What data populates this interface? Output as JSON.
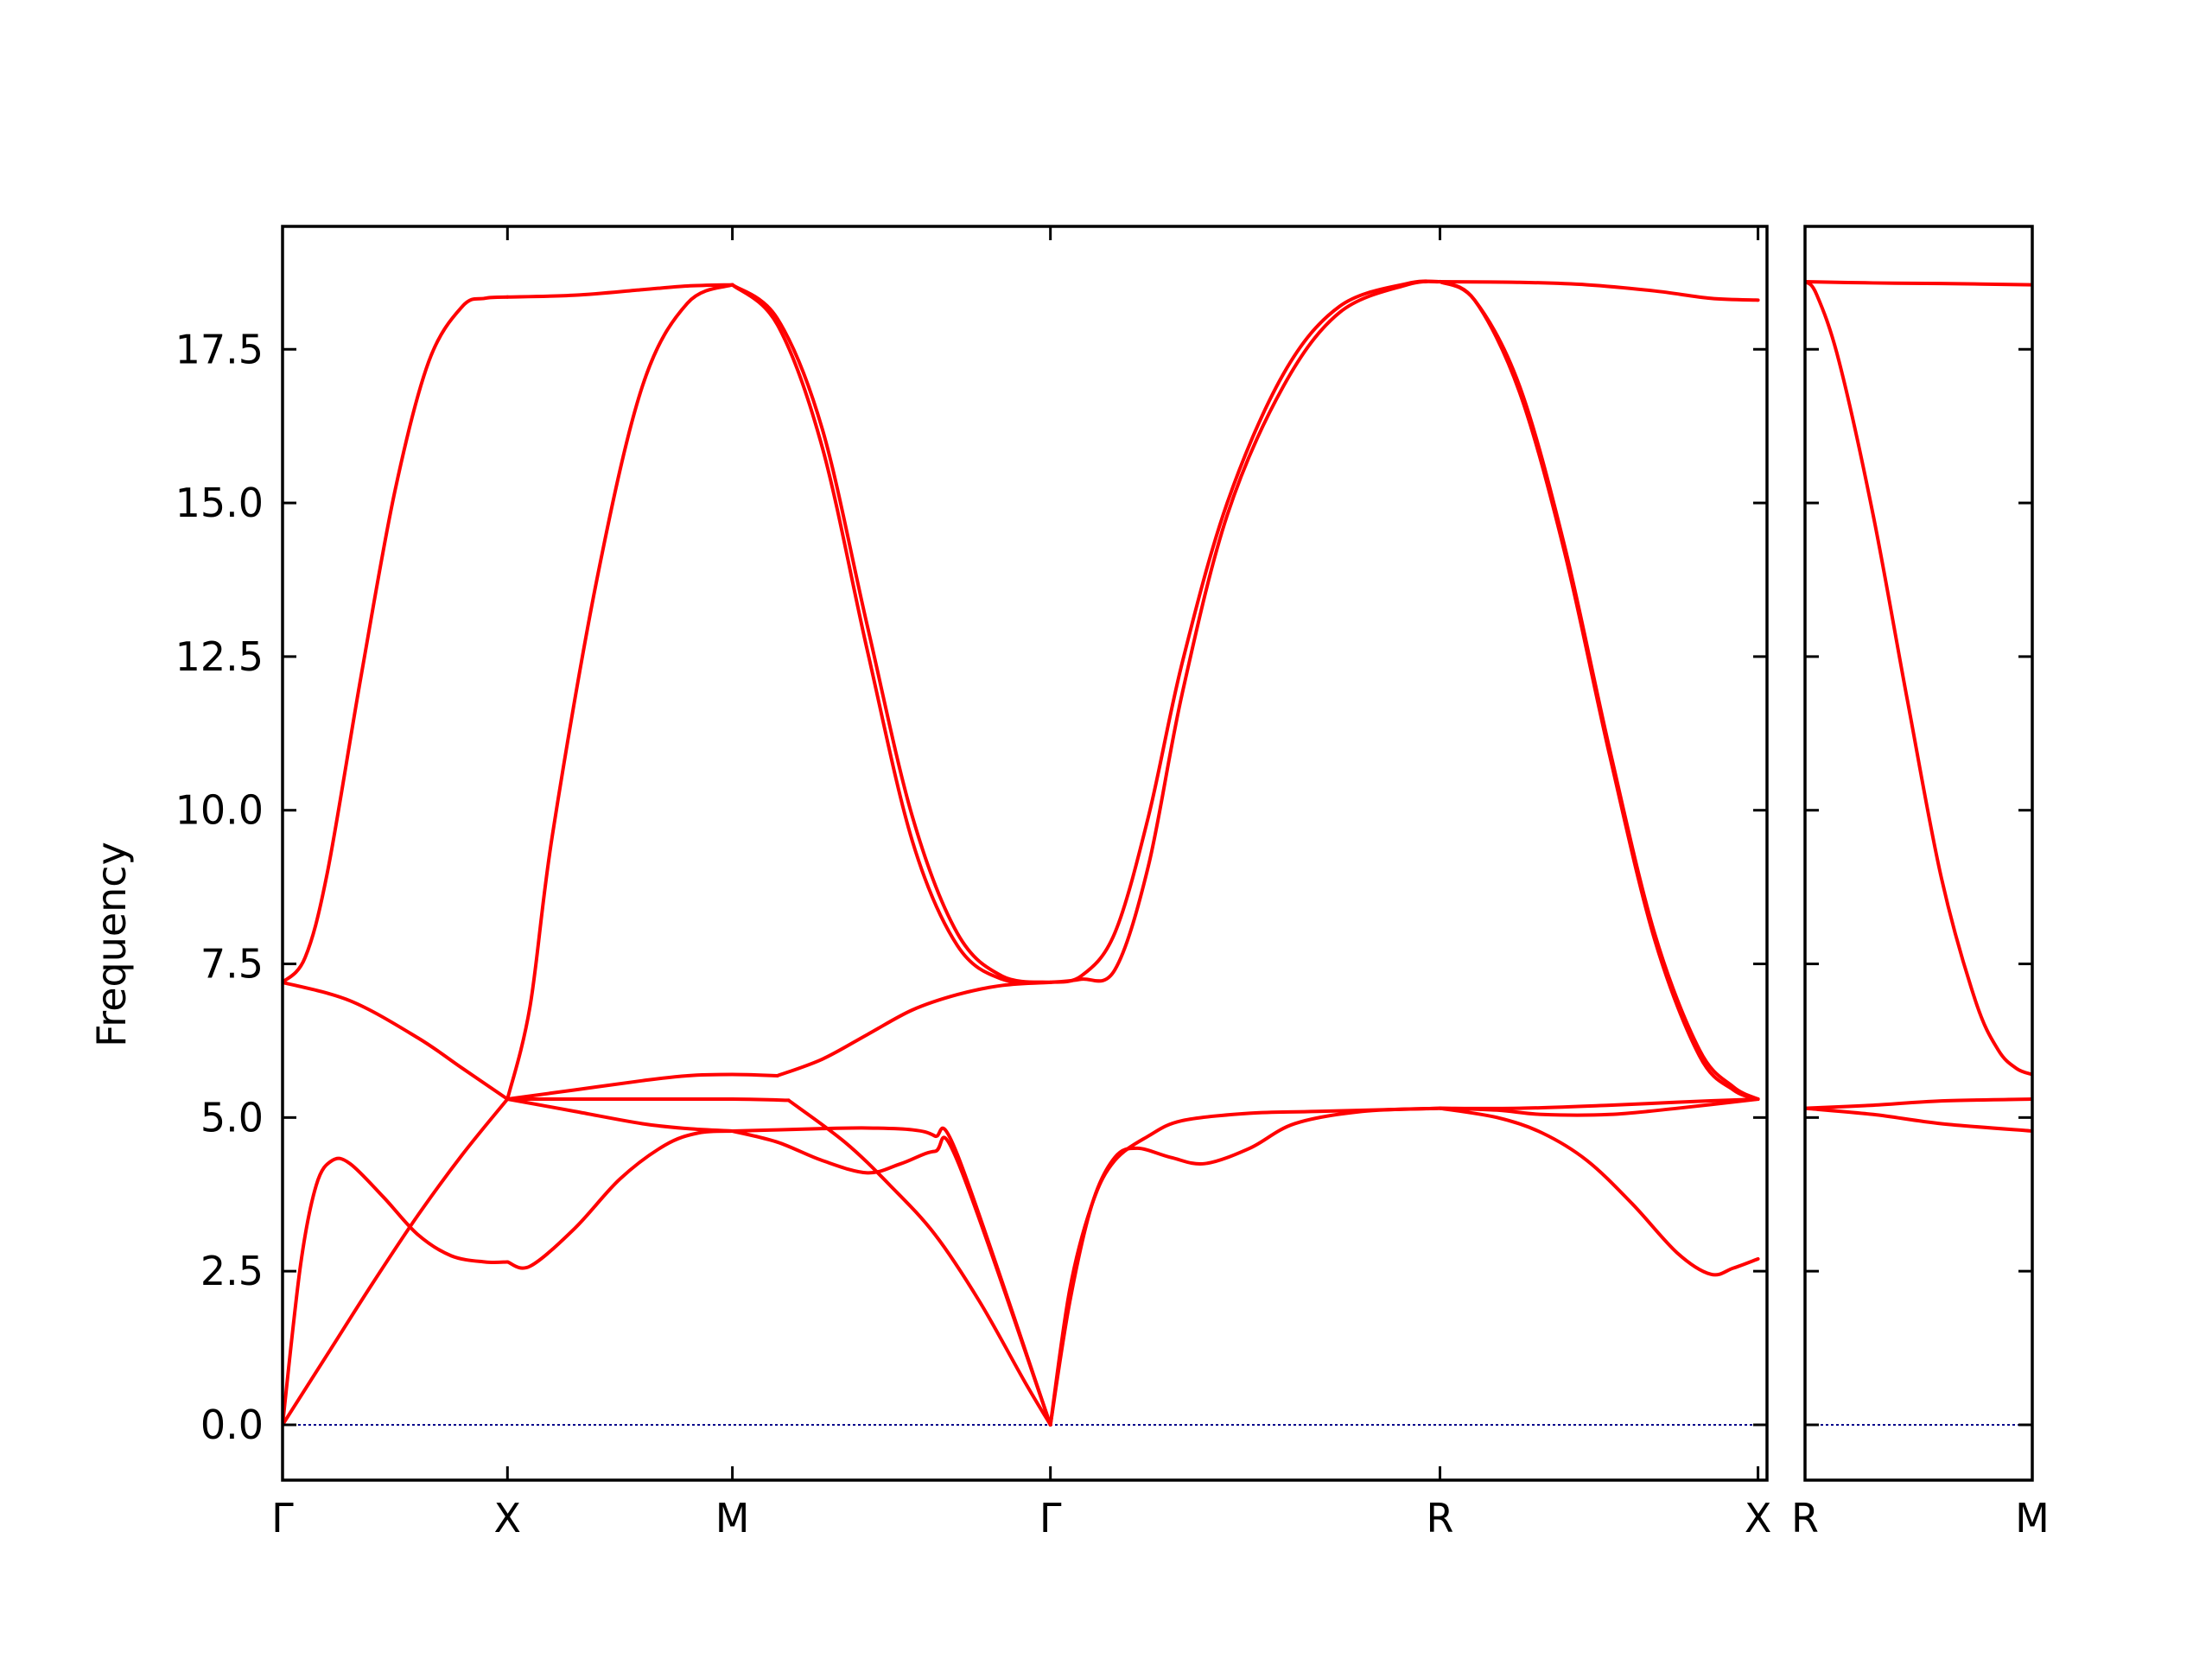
{
  "chart_data": {
    "type": "line",
    "ylabel": "Frequency",
    "ylim": [
      -0.9,
      19.5
    ],
    "yticks": [
      "0.0",
      "2.5",
      "5.0",
      "7.5",
      "10.0",
      "12.5",
      "15.0",
      "17.5"
    ],
    "band_color": "#ff0000",
    "zero_line_color": "#00008b",
    "panels": [
      {
        "xlim": [
          0,
          6.6
        ],
        "ticks": [
          {
            "x": 0,
            "label": "Γ"
          },
          {
            "x": 1,
            "label": "X"
          },
          {
            "x": 2,
            "label": "M"
          },
          {
            "x": 3.414,
            "label": "Γ"
          },
          {
            "x": 5.146,
            "label": "R"
          },
          {
            "x": 6.56,
            "label": "X"
          }
        ],
        "series": [
          {
            "x": [
              0,
              0.1,
              0.2,
              0.35,
              0.5,
              0.65,
              0.8,
              0.9,
              1.0
            ],
            "y": [
              7.2,
              7.6,
              9.0,
              12.2,
              15.2,
              17.3,
              18.2,
              18.33,
              18.35
            ]
          },
          {
            "x": [
              1.0,
              1.3,
              1.6,
              1.8,
              2.0
            ],
            "y": [
              18.35,
              18.38,
              18.47,
              18.53,
              18.55
            ]
          },
          {
            "x": [
              0,
              0.3,
              0.6,
              0.8,
              1.0
            ],
            "y": [
              7.2,
              6.9,
              6.3,
              5.8,
              5.3
            ]
          },
          {
            "x": [
              0,
              0.2,
              0.4,
              0.6,
              0.8,
              1.0
            ],
            "y": [
              0,
              1.15,
              2.3,
              3.4,
              4.4,
              5.3
            ]
          },
          {
            "x": [
              0,
              0.08,
              0.15,
              0.22,
              0.3,
              0.45,
              0.6,
              0.75,
              0.9,
              1.0
            ],
            "y": [
              0,
              2.6,
              3.9,
              4.3,
              4.25,
              3.7,
              3.1,
              2.75,
              2.65,
              2.65
            ]
          },
          {
            "x": [
              1.0,
              1.1,
              1.3,
              1.5,
              1.7,
              1.85,
              2.0
            ],
            "y": [
              2.65,
              2.58,
              3.2,
              4.0,
              4.55,
              4.75,
              4.78
            ]
          },
          {
            "x": [
              1.0,
              1.1,
              1.2,
              1.4,
              1.6,
              1.8,
              2.0
            ],
            "y": [
              5.3,
              6.8,
              9.6,
              13.8,
              16.9,
              18.25,
              18.55
            ]
          },
          {
            "x": [
              1.0,
              1.3,
              1.6,
              1.8,
              2.0,
              2.2
            ],
            "y": [
              5.3,
              5.45,
              5.6,
              5.68,
              5.7,
              5.68
            ]
          },
          {
            "x": [
              1.0,
              1.3,
              1.6,
              1.8,
              2.0
            ],
            "y": [
              5.3,
              5.1,
              4.9,
              4.82,
              4.78
            ]
          },
          {
            "x": [
              1.0,
              1.5,
              2.0,
              2.25
            ],
            "y": [
              5.3,
              5.3,
              5.3,
              5.28
            ]
          },
          {
            "x": [
              2.0,
              2.2,
              2.4,
              2.6,
              2.8,
              3.0,
              3.2,
              3.414
            ],
            "y": [
              18.55,
              17.9,
              15.9,
              12.6,
              9.5,
              7.8,
              7.25,
              7.2
            ]
          },
          {
            "x": [
              2.0,
              2.2,
              2.4,
              2.6,
              2.8,
              3.0,
              3.2,
              3.414
            ],
            "y": [
              18.55,
              18.0,
              16.2,
              13.0,
              9.9,
              8.0,
              7.3,
              7.2
            ]
          },
          {
            "x": [
              2.2,
              2.4,
              2.6,
              2.8,
              3.0,
              3.2,
              3.414
            ],
            "y": [
              5.68,
              5.95,
              6.35,
              6.75,
              7.0,
              7.15,
              7.2
            ]
          },
          {
            "x": [
              2.0,
              2.2,
              2.4,
              2.6,
              2.8,
              2.9,
              3.0,
              3.414
            ],
            "y": [
              4.78,
              4.8,
              4.82,
              4.83,
              4.8,
              4.7,
              4.4,
              0
            ]
          },
          {
            "x": [
              2.0,
              2.2,
              2.4,
              2.6,
              2.75,
              2.9,
              3.0,
              3.414
            ],
            "y": [
              4.78,
              4.6,
              4.3,
              4.1,
              4.25,
              4.45,
              4.3,
              0
            ]
          },
          {
            "x": [
              2.25,
              2.5,
              2.7,
              2.9,
              3.1,
              3.3,
              3.414
            ],
            "y": [
              5.28,
              4.6,
              3.9,
              3.1,
              2.0,
              0.7,
              0
            ]
          },
          {
            "x": [
              3.414,
              3.55,
              3.7,
              3.85,
              4.0,
              4.2,
              4.45,
              4.7,
              5.0,
              5.146
            ],
            "y": [
              7.2,
              7.3,
              8.0,
              9.9,
              12.4,
              15.0,
              17.1,
              18.2,
              18.57,
              18.6
            ]
          },
          {
            "x": [
              3.414,
              3.55,
              3.7,
              3.85,
              4.0,
              4.2,
              4.45,
              4.7,
              5.0,
              5.146
            ],
            "y": [
              7.2,
              7.25,
              7.4,
              9.1,
              11.9,
              14.8,
              16.9,
              18.1,
              18.55,
              18.6
            ]
          },
          {
            "x": [
              3.414,
              3.5,
              3.6,
              3.7,
              3.8,
              3.95,
              4.1,
              4.3,
              4.5,
              4.8,
              5.146
            ],
            "y": [
              0,
              2.0,
              3.6,
              4.35,
              4.5,
              4.35,
              4.25,
              4.5,
              4.9,
              5.1,
              5.15
            ]
          },
          {
            "x": [
              3.414,
              3.5,
              3.6,
              3.7,
              3.85,
              4.0,
              4.3,
              4.6,
              5.146
            ],
            "y": [
              0,
              2.2,
              3.6,
              4.3,
              4.7,
              4.95,
              5.07,
              5.1,
              5.15
            ]
          },
          {
            "x": [
              5.146,
              5.5,
              5.8,
              6.1,
              6.35,
              6.56
            ],
            "y": [
              18.6,
              18.59,
              18.55,
              18.45,
              18.33,
              18.3
            ]
          },
          {
            "x": [
              5.146,
              5.3,
              5.5,
              5.7,
              5.9,
              6.1,
              6.3,
              6.45,
              6.56
            ],
            "y": [
              18.6,
              18.3,
              16.9,
              14.3,
              11.0,
              8.0,
              6.1,
              5.5,
              5.3
            ]
          },
          {
            "x": [
              5.146,
              5.3,
              5.5,
              5.7,
              5.9,
              6.1,
              6.3,
              6.45,
              6.56
            ],
            "y": [
              18.6,
              18.3,
              16.8,
              14.2,
              10.9,
              7.9,
              6.0,
              5.45,
              5.3
            ]
          },
          {
            "x": [
              5.146,
              5.5,
              5.9,
              6.2,
              6.56
            ],
            "y": [
              5.15,
              5.15,
              5.2,
              5.25,
              5.3
            ]
          },
          {
            "x": [
              5.146,
              5.4,
              5.6,
              5.9,
              6.2,
              6.56
            ],
            "y": [
              5.15,
              5.12,
              5.05,
              5.05,
              5.15,
              5.3
            ]
          },
          {
            "x": [
              5.146,
              5.4,
              5.6,
              5.8,
              6.0,
              6.2,
              6.35,
              6.45,
              6.56
            ],
            "y": [
              5.15,
              5.0,
              4.75,
              4.3,
              3.6,
              2.8,
              2.45,
              2.55,
              2.7
            ]
          }
        ]
      },
      {
        "xlim": [
          0,
          1
        ],
        "ticks": [
          {
            "x": 0,
            "label": "R"
          },
          {
            "x": 1,
            "label": "M"
          }
        ],
        "series": [
          {
            "x": [
              0,
              0.3,
              0.6,
              1.0
            ],
            "y": [
              18.6,
              18.58,
              18.57,
              18.55
            ]
          },
          {
            "x": [
              0,
              0.05,
              0.15,
              0.3,
              0.45,
              0.6,
              0.75,
              0.85,
              0.93,
              1.0
            ],
            "y": [
              18.6,
              18.4,
              17.3,
              14.8,
              11.8,
              8.9,
              6.9,
              6.1,
              5.8,
              5.7
            ]
          },
          {
            "x": [
              0,
              0.3,
              0.6,
              1.0
            ],
            "y": [
              5.15,
              5.2,
              5.27,
              5.3
            ]
          },
          {
            "x": [
              0,
              0.3,
              0.6,
              1.0
            ],
            "y": [
              5.15,
              5.05,
              4.9,
              4.78
            ]
          }
        ]
      }
    ]
  }
}
